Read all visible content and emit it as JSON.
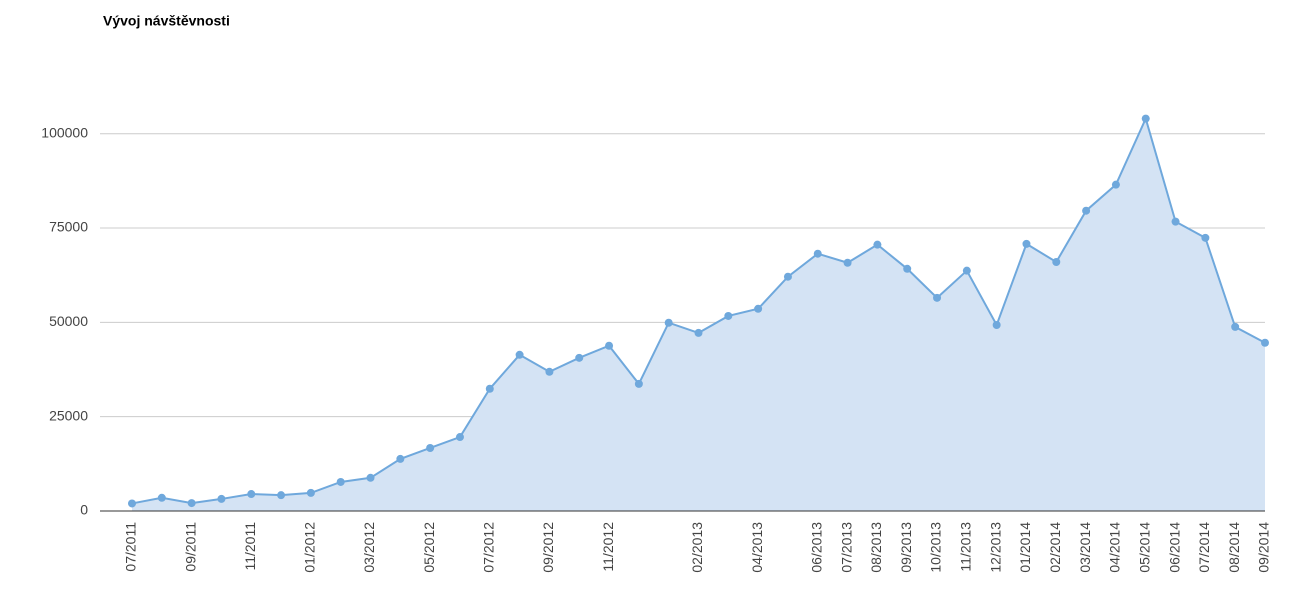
{
  "chart_data": {
    "type": "area",
    "title": "Vývoj návštěvnosti",
    "categories": [
      "07/2011",
      null,
      "09/2011",
      null,
      "11/2011",
      null,
      "01/2012",
      null,
      "03/2012",
      null,
      "05/2012",
      null,
      "07/2012",
      null,
      "09/2012",
      null,
      "11/2012",
      null,
      null,
      "02/2013",
      null,
      "04/2013",
      null,
      "06/2013",
      "07/2013",
      "08/2013",
      "09/2013",
      "10/2013",
      "11/2013",
      "12/2013",
      "01/2014",
      "02/2014",
      "03/2014",
      "04/2014",
      "05/2014",
      "06/2014",
      "07/2014",
      "08/2014",
      "09/2014"
    ],
    "values": [
      2000,
      3500,
      2100,
      3200,
      4500,
      4200,
      4800,
      7700,
      8800,
      13800,
      16700,
      19600,
      32400,
      41400,
      36900,
      40600,
      43800,
      33700,
      49900,
      47200,
      51700,
      53600,
      62100,
      68200,
      65800,
      70600,
      64200,
      56500,
      63700,
      49300,
      70800,
      66000,
      79600,
      86500,
      104000,
      76700,
      72400,
      48800,
      44600
    ],
    "color": "#6fa8dc",
    "fill": "#d4e3f4",
    "ylim": [
      0,
      110000
    ],
    "yticks": [
      0,
      25000,
      50000,
      75000,
      100000
    ],
    "grid": true
  }
}
